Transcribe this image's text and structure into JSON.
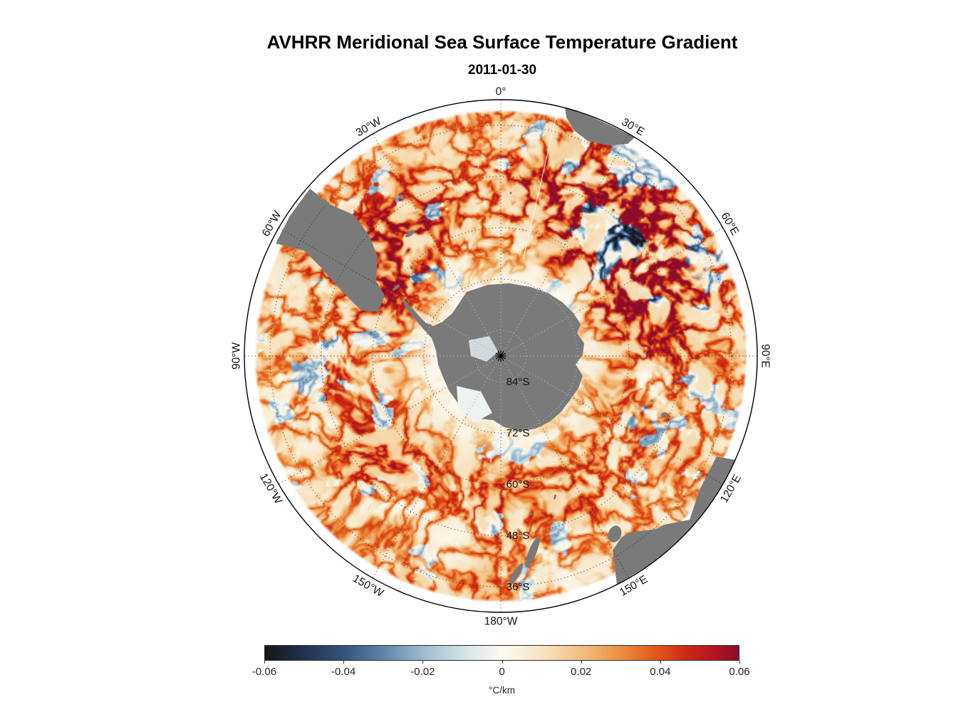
{
  "figure": {
    "title": "AVHRR Meridional Sea Surface Temperature Gradient",
    "subtitle": "2011-01-30"
  },
  "map": {
    "meridian_labels": [
      {
        "text": "0°",
        "angle": 0
      },
      {
        "text": "30°E",
        "angle": 30
      },
      {
        "text": "60°E",
        "angle": 60
      },
      {
        "text": "90°E",
        "angle": 90
      },
      {
        "text": "120°E",
        "angle": 120
      },
      {
        "text": "150°E",
        "angle": 150
      },
      {
        "text": "180°W",
        "angle": 180
      },
      {
        "text": "150°W",
        "angle": 210
      },
      {
        "text": "120°W",
        "angle": 240
      },
      {
        "text": "90°W",
        "angle": 270
      },
      {
        "text": "60°W",
        "angle": 300
      },
      {
        "text": "30°W",
        "angle": 330
      }
    ],
    "parallel_labels": [
      {
        "text": "84°S",
        "lat": 84
      },
      {
        "text": "72°S",
        "lat": 72
      },
      {
        "text": "60°S",
        "lat": 60
      },
      {
        "text": "48°S",
        "lat": 48
      },
      {
        "text": "36°S",
        "lat": 36
      }
    ],
    "land_color": "#7a7a7a",
    "ice_color": "#eef2f2",
    "ice_color_2": "#dde4e8",
    "grid_color": "#1f1f1f",
    "grid_color_on_land": "#d6d6d6",
    "outline_color": "#000000",
    "seam_color": "#ffffff"
  },
  "colorbar": {
    "label": "°C/km",
    "ticks": [
      "-0.06",
      "-0.04",
      "-0.02",
      "0",
      "0.02",
      "0.04",
      "0.06"
    ],
    "stops": [
      {
        "p": 0,
        "c": "#161616"
      },
      {
        "p": 8,
        "c": "#20304f"
      },
      {
        "p": 17,
        "c": "#33567f"
      },
      {
        "p": 25,
        "c": "#5d85ab"
      },
      {
        "p": 33,
        "c": "#9ab9cf"
      },
      {
        "p": 40,
        "c": "#c8dbe2"
      },
      {
        "p": 46,
        "c": "#e9efec"
      },
      {
        "p": 50,
        "c": "#fdfaf1"
      },
      {
        "p": 55,
        "c": "#f9eed8"
      },
      {
        "p": 61,
        "c": "#f6d9ae"
      },
      {
        "p": 68,
        "c": "#f2b877"
      },
      {
        "p": 75,
        "c": "#ec8f42"
      },
      {
        "p": 82,
        "c": "#e45c1c"
      },
      {
        "p": 89,
        "c": "#cc2912"
      },
      {
        "p": 95,
        "c": "#b01420"
      },
      {
        "p": 100,
        "c": "#8c0c2c"
      }
    ]
  },
  "chart_data": {
    "type": "heatmap",
    "title": "AVHRR Meridional Sea Surface Temperature Gradient",
    "date": "2011-01-30",
    "projection": "South polar stereographic map centered on Antarctica, outer edge near 30°S",
    "variable": "Meridional sea surface temperature gradient",
    "units": "°C/km",
    "value_range": [
      -0.06,
      0.06
    ],
    "colorbar_ticks": [
      -0.06,
      -0.04,
      -0.02,
      0,
      0.02,
      0.04,
      0.06
    ],
    "meridian_gridlines_deg": [
      "0",
      "30E",
      "60E",
      "90E",
      "120E",
      "150E",
      "180W",
      "150W",
      "120W",
      "90W",
      "60W",
      "30W"
    ],
    "parallel_gridlines_deg_south": [
      84,
      72,
      60,
      48,
      36
    ],
    "legend_position": "bottom horizontal colorbar"
  }
}
